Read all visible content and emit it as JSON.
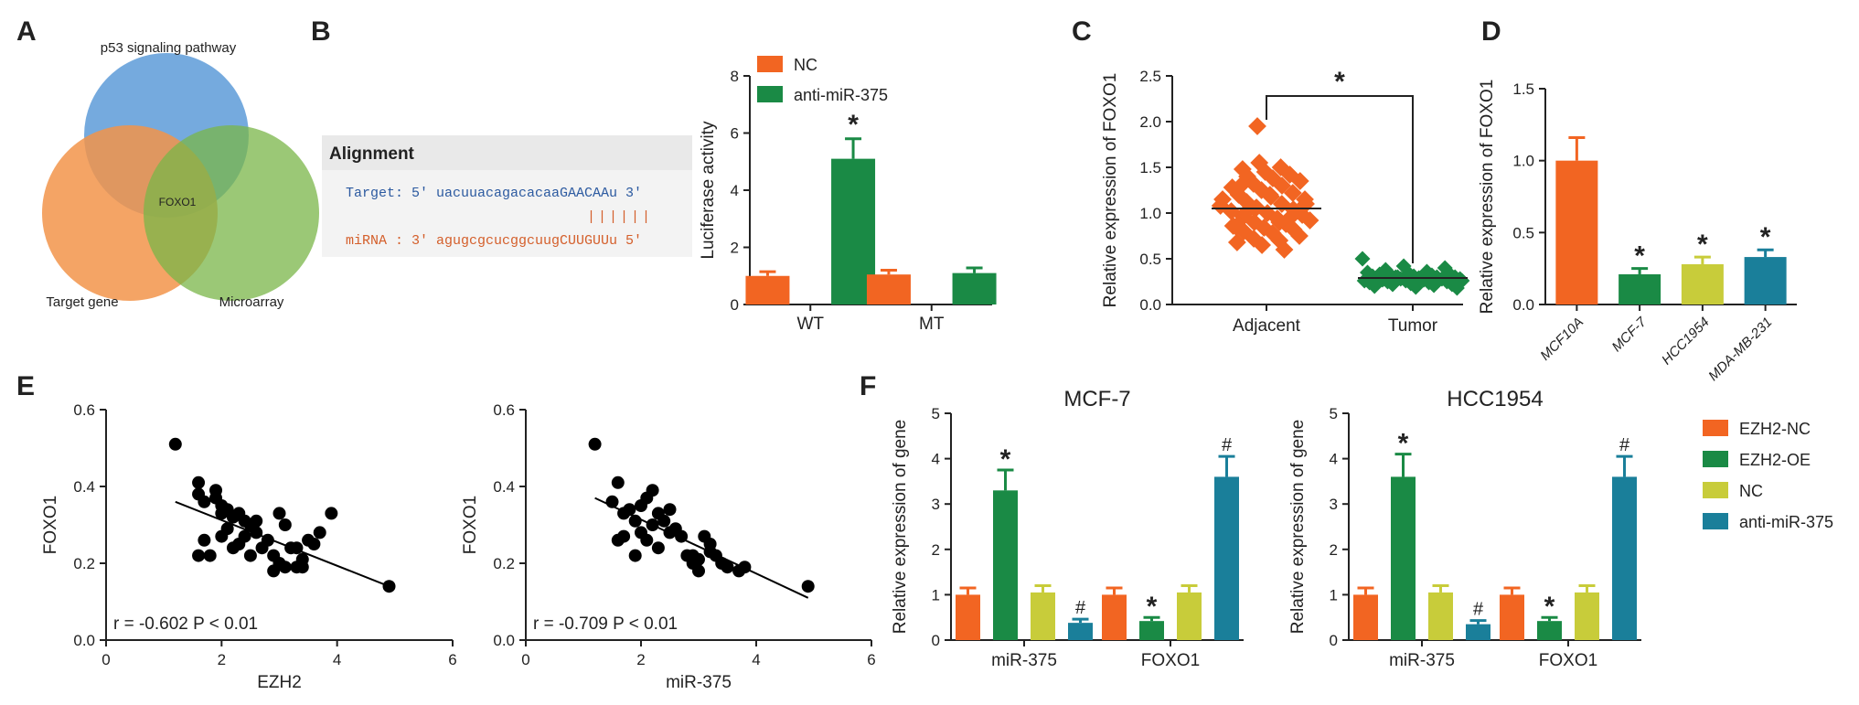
{
  "panel_labels": {
    "A": "A",
    "B": "B",
    "C": "C",
    "D": "D",
    "E": "E",
    "F": "F"
  },
  "colors": {
    "orange": "#f26522",
    "green": "#1a8a45",
    "yellow": "#c8cc3a",
    "teal": "#1a7f9a",
    "venn_blue": "#5d9bd8",
    "venn_orange": "#f2944a",
    "venn_green": "#7ab648",
    "align_blue": "#2c5aa0",
    "align_red": "#d45f2b"
  },
  "venn": {
    "top": "p53 signaling pathway",
    "left": "Target gene",
    "right": "Microarray",
    "center": "FOXO1"
  },
  "alignment": {
    "header": "Alignment",
    "target_row": "Target: 5' uacuuacagacacaaGAACAAu 3'",
    "pairs": "||||||",
    "mirna_row": "miRNA : 3' agugcgcucggcuugCUUGUUu 5'"
  },
  "chart_data": [
    {
      "id": "B",
      "type": "bar",
      "ylabel": "Luciferase activity",
      "ylim": [
        0,
        8
      ],
      "yticks": [
        "0",
        "2",
        "4",
        "6",
        "8"
      ],
      "categories": [
        "WT",
        "MT"
      ],
      "series": [
        {
          "name": "NC",
          "values": [
            1.0,
            1.05
          ],
          "errors": [
            0.15,
            0.15
          ]
        },
        {
          "name": "anti-miR-375",
          "values": [
            5.1,
            1.1
          ],
          "errors": [
            0.7,
            0.18
          ]
        }
      ],
      "annotations": [
        "*"
      ]
    },
    {
      "id": "C",
      "type": "scatter",
      "ylabel": "Relative expression of FOXO1",
      "ylim": [
        0,
        2.5
      ],
      "yticks": [
        "0.0",
        "0.5",
        "1.0",
        "1.5",
        "2.0",
        "2.5"
      ],
      "categories": [
        "Adjacent",
        "Tumor"
      ],
      "means": [
        1.05,
        0.29
      ],
      "adjacent": [
        1.95,
        1.55,
        1.5,
        1.48,
        1.45,
        1.42,
        1.4,
        1.38,
        1.35,
        1.32,
        1.3,
        1.28,
        1.25,
        1.22,
        1.2,
        1.18,
        1.15,
        1.12,
        1.1,
        1.08,
        1.06,
        1.04,
        1.02,
        1.0,
        0.98,
        0.96,
        0.94,
        0.92,
        0.9,
        0.88,
        0.86,
        0.84,
        0.82,
        0.8,
        0.78,
        0.75,
        0.72,
        0.7,
        0.68,
        0.65,
        0.6,
        1.3,
        1.2,
        1.1,
        1.0,
        0.9,
        1.15,
        1.05,
        0.95,
        0.85
      ],
      "tumor": [
        0.5,
        0.42,
        0.4,
        0.38,
        0.36,
        0.35,
        0.34,
        0.33,
        0.32,
        0.32,
        0.31,
        0.31,
        0.3,
        0.3,
        0.3,
        0.29,
        0.29,
        0.28,
        0.28,
        0.28,
        0.27,
        0.27,
        0.26,
        0.26,
        0.25,
        0.25,
        0.24,
        0.24,
        0.23,
        0.22,
        0.22,
        0.21,
        0.2,
        0.19,
        0.18,
        0.3,
        0.27,
        0.33,
        0.29,
        0.26
      ],
      "annotations": [
        "*"
      ]
    },
    {
      "id": "D",
      "type": "bar",
      "ylabel": "Relative expression of FOXO1",
      "ylim": [
        0,
        1.5
      ],
      "yticks": [
        "0.0",
        "0.5",
        "1.0",
        "1.5"
      ],
      "categories": [
        "MCF10A",
        "MCF-7",
        "HCC1954",
        "MDA-MB-231"
      ],
      "values": [
        1.0,
        0.21,
        0.28,
        0.33
      ],
      "errors": [
        0.16,
        0.04,
        0.05,
        0.05
      ],
      "annotations": [
        "*",
        "*",
        "*"
      ]
    },
    {
      "id": "E1",
      "type": "scatter",
      "xlabel": "EZH2",
      "ylabel": "FOXO1",
      "xlim": [
        0,
        6
      ],
      "ylim": [
        0,
        0.6
      ],
      "xticks": [
        "0",
        "2",
        "4",
        "6"
      ],
      "yticks": [
        "0.0",
        "0.2",
        "0.4",
        "0.6"
      ],
      "stat": "r = -0.602  P < 0.01",
      "fit": [
        [
          1.2,
          0.36
        ],
        [
          4.9,
          0.14
        ]
      ],
      "points": [
        [
          1.2,
          0.51
        ],
        [
          1.6,
          0.41
        ],
        [
          1.6,
          0.38
        ],
        [
          1.7,
          0.36
        ],
        [
          1.9,
          0.39
        ],
        [
          1.9,
          0.37
        ],
        [
          2.0,
          0.35
        ],
        [
          2.0,
          0.33
        ],
        [
          2.1,
          0.34
        ],
        [
          2.2,
          0.32
        ],
        [
          2.3,
          0.33
        ],
        [
          2.4,
          0.31
        ],
        [
          2.5,
          0.3
        ],
        [
          2.6,
          0.31
        ],
        [
          2.4,
          0.27
        ],
        [
          2.3,
          0.25
        ],
        [
          2.0,
          0.27
        ],
        [
          1.7,
          0.26
        ],
        [
          1.8,
          0.22
        ],
        [
          1.6,
          0.22
        ],
        [
          2.2,
          0.24
        ],
        [
          2.5,
          0.22
        ],
        [
          2.7,
          0.24
        ],
        [
          2.8,
          0.26
        ],
        [
          2.9,
          0.22
        ],
        [
          3.0,
          0.33
        ],
        [
          3.1,
          0.3
        ],
        [
          3.0,
          0.2
        ],
        [
          2.9,
          0.18
        ],
        [
          3.1,
          0.19
        ],
        [
          3.2,
          0.24
        ],
        [
          3.3,
          0.19
        ],
        [
          3.4,
          0.21
        ],
        [
          3.3,
          0.24
        ],
        [
          3.5,
          0.26
        ],
        [
          3.6,
          0.25
        ],
        [
          3.7,
          0.28
        ],
        [
          3.9,
          0.33
        ],
        [
          3.4,
          0.19
        ],
        [
          4.9,
          0.14
        ],
        [
          2.1,
          0.29
        ],
        [
          2.6,
          0.28
        ]
      ]
    },
    {
      "id": "E2",
      "type": "scatter",
      "xlabel": "miR-375",
      "ylabel": "FOXO1",
      "xlim": [
        0,
        6
      ],
      "ylim": [
        0,
        0.6
      ],
      "xticks": [
        "0",
        "2",
        "4",
        "6"
      ],
      "yticks": [
        "0.0",
        "0.2",
        "0.4",
        "0.6"
      ],
      "stat": "r = -0.709  P < 0.01",
      "fit": [
        [
          1.2,
          0.37
        ],
        [
          4.9,
          0.11
        ]
      ],
      "points": [
        [
          1.2,
          0.51
        ],
        [
          1.6,
          0.41
        ],
        [
          1.5,
          0.36
        ],
        [
          1.7,
          0.33
        ],
        [
          1.8,
          0.34
        ],
        [
          1.9,
          0.31
        ],
        [
          2.0,
          0.35
        ],
        [
          2.1,
          0.37
        ],
        [
          2.2,
          0.39
        ],
        [
          2.3,
          0.33
        ],
        [
          2.4,
          0.31
        ],
        [
          2.5,
          0.34
        ],
        [
          2.2,
          0.3
        ],
        [
          2.0,
          0.28
        ],
        [
          1.7,
          0.27
        ],
        [
          1.6,
          0.26
        ],
        [
          1.9,
          0.22
        ],
        [
          2.1,
          0.26
        ],
        [
          2.3,
          0.24
        ],
        [
          2.6,
          0.29
        ],
        [
          2.7,
          0.27
        ],
        [
          2.8,
          0.22
        ],
        [
          2.9,
          0.2
        ],
        [
          3.0,
          0.18
        ],
        [
          2.9,
          0.22
        ],
        [
          3.1,
          0.27
        ],
        [
          3.2,
          0.25
        ],
        [
          3.3,
          0.22
        ],
        [
          3.4,
          0.2
        ],
        [
          3.5,
          0.19
        ],
        [
          3.7,
          0.18
        ],
        [
          3.8,
          0.19
        ],
        [
          3.2,
          0.23
        ],
        [
          4.9,
          0.14
        ],
        [
          2.5,
          0.28
        ],
        [
          3.0,
          0.21
        ]
      ]
    },
    {
      "id": "F1",
      "type": "bar",
      "title": "MCF-7",
      "ylabel": "Relative expression of gene",
      "ylim": [
        0,
        5
      ],
      "yticks": [
        "0",
        "1",
        "2",
        "3",
        "4",
        "5"
      ],
      "categories": [
        "miR-375",
        "FOXO1"
      ],
      "series": [
        {
          "name": "EZH2-NC",
          "values": [
            1.0,
            1.0
          ],
          "errors": [
            0.15,
            0.15
          ]
        },
        {
          "name": "EZH2-OE",
          "values": [
            3.3,
            0.42
          ],
          "errors": [
            0.45,
            0.08
          ]
        },
        {
          "name": "NC",
          "values": [
            1.05,
            1.05
          ],
          "errors": [
            0.15,
            0.15
          ]
        },
        {
          "name": "anti-miR-375",
          "values": [
            0.38,
            3.6
          ],
          "errors": [
            0.08,
            0.45
          ]
        }
      ],
      "annotations": [
        "*",
        "#",
        "*",
        "#"
      ]
    },
    {
      "id": "F2",
      "type": "bar",
      "title": "HCC1954",
      "ylabel": "Relative expression of gene",
      "ylim": [
        0,
        5
      ],
      "yticks": [
        "0",
        "1",
        "2",
        "3",
        "4",
        "5"
      ],
      "categories": [
        "miR-375",
        "FOXO1"
      ],
      "series": [
        {
          "name": "EZH2-NC",
          "values": [
            1.0,
            1.0
          ],
          "errors": [
            0.15,
            0.15
          ]
        },
        {
          "name": "EZH2-OE",
          "values": [
            3.6,
            0.42
          ],
          "errors": [
            0.5,
            0.08
          ]
        },
        {
          "name": "NC",
          "values": [
            1.05,
            1.05
          ],
          "errors": [
            0.15,
            0.15
          ]
        },
        {
          "name": "anti-miR-375",
          "values": [
            0.35,
            3.6
          ],
          "errors": [
            0.08,
            0.45
          ]
        }
      ],
      "annotations": [
        "*",
        "#",
        "*",
        "#"
      ]
    }
  ]
}
